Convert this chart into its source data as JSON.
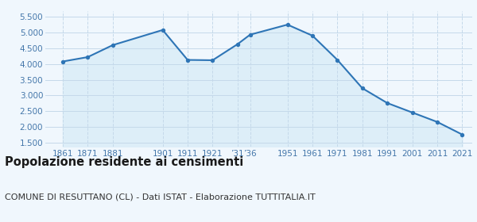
{
  "years": [
    1861,
    1871,
    1881,
    1901,
    1911,
    1921,
    1931,
    1936,
    1951,
    1961,
    1971,
    1981,
    1991,
    2001,
    2011,
    2021
  ],
  "population": [
    4080,
    4220,
    4600,
    5080,
    4130,
    4120,
    4630,
    4930,
    5250,
    4900,
    4130,
    3230,
    2760,
    2460,
    2160,
    1760
  ],
  "yticks": [
    1500,
    2000,
    2500,
    3000,
    3500,
    4000,
    4500,
    5000,
    5500
  ],
  "ylim": [
    1380,
    5680
  ],
  "xlim_left": 1854,
  "xlim_right": 2025,
  "line_color": "#2e75b6",
  "fill_color": "#ddeef8",
  "marker_color": "#2e75b6",
  "grid_color": "#c5d9ea",
  "bg_color": "#f0f7fd",
  "title": "Popolazione residente ai censimenti",
  "subtitle": "COMUNE DI RESUTTANO (CL) - Dati ISTAT - Elaborazione TUTTITALIA.IT",
  "title_fontsize": 10.5,
  "subtitle_fontsize": 8,
  "tick_label_color": "#4477aa",
  "tick_fontsize": 7.5,
  "x_tick_pos": [
    1861,
    1871,
    1881,
    1901,
    1911,
    1921,
    1931,
    1936,
    1951,
    1961,
    1971,
    1981,
    1991,
    2001,
    2011,
    2021
  ],
  "x_tick_labels": [
    "1861",
    "1871",
    "1881",
    "1901",
    "1911",
    "1921",
    "’31",
    "’36",
    "1951",
    "1961",
    "1971",
    "1981",
    "1991",
    "2001",
    "2011",
    "2021"
  ]
}
